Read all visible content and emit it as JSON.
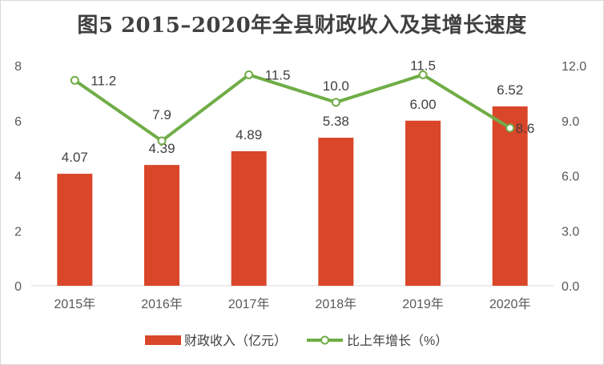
{
  "chart_data": {
    "type": "bar",
    "title": "图5  2015–2020年全县财政收入及其增长速度",
    "categories": [
      "2015年",
      "2016年",
      "2017年",
      "2018年",
      "2019年",
      "2020年"
    ],
    "series": [
      {
        "name": "财政收入（亿元）",
        "type": "bar",
        "axis": "left",
        "color": "#d9462a",
        "values": [
          4.07,
          4.39,
          4.89,
          5.38,
          6.0,
          6.52
        ],
        "labels": [
          "4.07",
          "4.39",
          "4.89",
          "5.38",
          "6.00",
          "6.52"
        ]
      },
      {
        "name": "比上年增长（%）",
        "type": "line",
        "axis": "right",
        "color": "#70ad47",
        "values": [
          11.2,
          7.9,
          11.5,
          10.0,
          11.5,
          8.6
        ],
        "labels": [
          "11.2",
          "7.9",
          "11.5",
          "10.0",
          "11.5",
          "8.6"
        ]
      }
    ],
    "y_left": {
      "ylim": [
        0,
        8
      ],
      "ticks": [
        "0",
        "2",
        "4",
        "6",
        "8"
      ]
    },
    "y_right": {
      "ylim": [
        0,
        12
      ],
      "ticks": [
        "0.0",
        "3.0",
        "6.0",
        "9.0",
        "12.0"
      ]
    },
    "grid": false,
    "legend": "bottom"
  }
}
